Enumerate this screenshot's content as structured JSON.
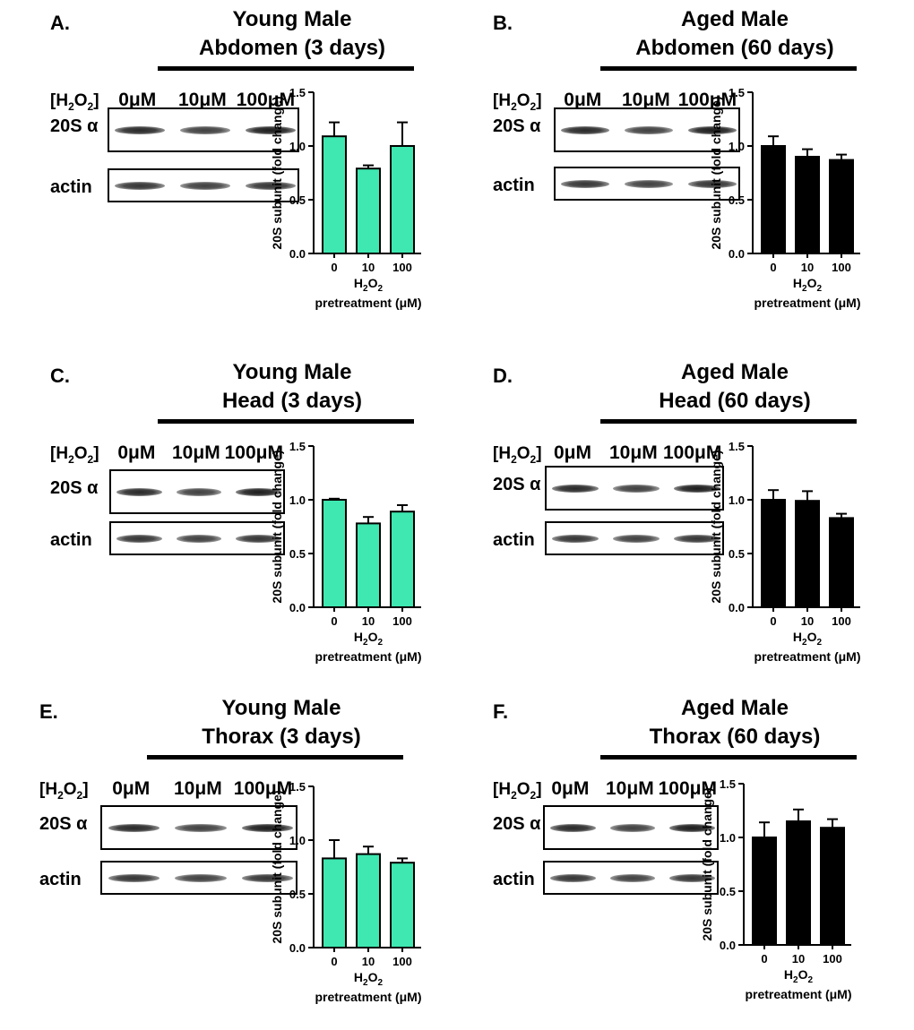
{
  "figure": {
    "conc_label_prefix": "[H",
    "conc_label_o": "O",
    "conc_label_sub": "2",
    "conc_label_end": "]",
    "doses": [
      "0μM",
      "10μM",
      "100μM"
    ],
    "row_labels": [
      "20S α",
      "actin"
    ]
  },
  "panels": [
    {
      "letter": "A.",
      "title1": "Young Male",
      "title2": "Abdomen (3 days)"
    },
    {
      "letter": "B.",
      "title1": "Aged Male",
      "title2": "Abdomen (60 days)"
    },
    {
      "letter": "C.",
      "title1": "Young Male",
      "title2": "Head (3 days)"
    },
    {
      "letter": "D.",
      "title1": "Aged Male",
      "title2": "Head (60 days)"
    },
    {
      "letter": "E.",
      "title1": "Young Male",
      "title2": "Thorax (3 days)"
    },
    {
      "letter": "F.",
      "title1": "Aged Male",
      "title2": "Thorax (60 days)"
    }
  ],
  "colors": {
    "young": "#3ee8b0",
    "aged": "#000000"
  },
  "chart_data": [
    {
      "type": "bar",
      "panel": "A",
      "title": "Young Male Abdomen (3 days)",
      "categories": [
        "0",
        "10",
        "100"
      ],
      "values": [
        1.09,
        0.79,
        1.0
      ],
      "errors": [
        0.13,
        0.03,
        0.22
      ],
      "xlabel": "H2O2 pretreatment (μM)",
      "ylabel": "20S subunit (fold change)",
      "ylim": [
        0,
        1.5
      ],
      "yticks": [
        "0.0",
        "0.5",
        "1.0",
        "1.5"
      ],
      "color": "#3ee8b0"
    },
    {
      "type": "bar",
      "panel": "B",
      "title": "Aged Male Abdomen (60 days)",
      "categories": [
        "0",
        "10",
        "100"
      ],
      "values": [
        1.0,
        0.9,
        0.87
      ],
      "errors": [
        0.09,
        0.07,
        0.05
      ],
      "xlabel": "H2O2 pretreatment (μM)",
      "ylabel": "20S subunit (fold change)",
      "ylim": [
        0,
        1.5
      ],
      "yticks": [
        "0.0",
        "0.5",
        "1.0",
        "1.5"
      ],
      "color": "#000000"
    },
    {
      "type": "bar",
      "panel": "C",
      "title": "Young Male Head (3 days)",
      "categories": [
        "0",
        "10",
        "100"
      ],
      "values": [
        1.0,
        0.78,
        0.89
      ],
      "errors": [
        0.01,
        0.06,
        0.06
      ],
      "xlabel": "H2O2 pretreatment (μM)",
      "ylabel": "20S subunit (fold change)",
      "ylim": [
        0,
        1.5
      ],
      "yticks": [
        "0.0",
        "0.5",
        "1.0",
        "1.5"
      ],
      "color": "#3ee8b0"
    },
    {
      "type": "bar",
      "panel": "D",
      "title": "Aged Male Head (60 days)",
      "categories": [
        "0",
        "10",
        "100"
      ],
      "values": [
        1.0,
        0.99,
        0.83
      ],
      "errors": [
        0.09,
        0.09,
        0.04
      ],
      "xlabel": "H2O2 pretreatment (μM)",
      "ylabel": "20S subunit (fold change)",
      "ylim": [
        0,
        1.5
      ],
      "yticks": [
        "0.0",
        "0.5",
        "1.0",
        "1.5"
      ],
      "color": "#000000"
    },
    {
      "type": "bar",
      "panel": "E",
      "title": "Young Male Thorax (3 days)",
      "categories": [
        "0",
        "10",
        "100"
      ],
      "values": [
        0.83,
        0.87,
        0.79
      ],
      "errors": [
        0.17,
        0.07,
        0.04
      ],
      "xlabel": "H2O2 pretreatment (μM)",
      "ylabel": "20S subunit (fold change)",
      "ylim": [
        0,
        1.5
      ],
      "yticks": [
        "0.0",
        "0.5",
        "1.0",
        "1.5"
      ],
      "color": "#3ee8b0"
    },
    {
      "type": "bar",
      "panel": "F",
      "title": "Aged Male Thorax (60 days)",
      "categories": [
        "0",
        "10",
        "100"
      ],
      "values": [
        1.0,
        1.15,
        1.09
      ],
      "errors": [
        0.14,
        0.11,
        0.08
      ],
      "xlabel": "H2O2 pretreatment (μM)",
      "ylabel": "20S subunit (fold change)",
      "ylim": [
        0,
        1.5
      ],
      "yticks": [
        "0.0",
        "0.5",
        "1.0",
        "1.5"
      ],
      "color": "#000000"
    }
  ]
}
